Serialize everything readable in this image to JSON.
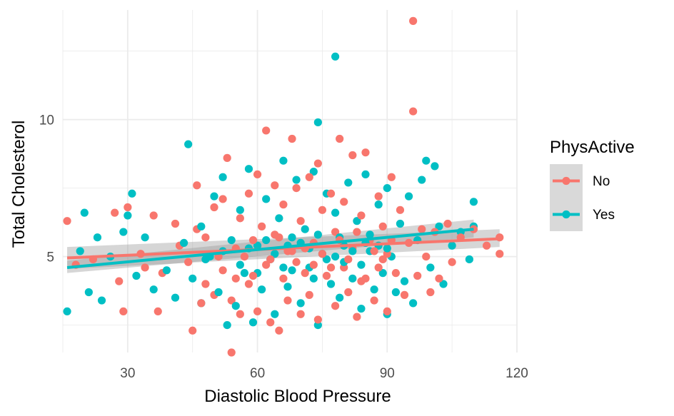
{
  "chart_data": {
    "type": "scatter",
    "xlabel": "Diastolic Blood Pressure",
    "ylabel": "Total Cholesterol",
    "xlim": [
      15,
      120
    ],
    "ylim": [
      1.5,
      14
    ],
    "x_ticks": [
      30,
      60,
      90,
      120
    ],
    "y_ticks": [
      5,
      10
    ],
    "x_tick_labels": [
      "30",
      "60",
      "90",
      "120"
    ],
    "y_tick_labels": [
      "5",
      "10"
    ],
    "grid": true,
    "theme": "minimal",
    "legend": {
      "title": "PhysActive",
      "position": "right",
      "entries": [
        "No",
        "Yes"
      ]
    },
    "series": [
      {
        "name": "No",
        "color": "#f8766d",
        "trend": {
          "x": [
            16,
            116
          ],
          "y": [
            4.95,
            5.65
          ],
          "ci_low": [
            4.55,
            5.35
          ],
          "ci_high": [
            5.35,
            6.0
          ]
        },
        "points": [
          [
            16,
            6.3
          ],
          [
            18,
            4.7
          ],
          [
            22,
            4.9
          ],
          [
            27,
            6.6
          ],
          [
            28,
            4.1
          ],
          [
            29,
            3.0
          ],
          [
            30,
            6.8
          ],
          [
            33,
            5.1
          ],
          [
            34,
            4.6
          ],
          [
            36,
            6.5
          ],
          [
            37,
            3.0
          ],
          [
            38,
            4.4
          ],
          [
            41,
            6.2
          ],
          [
            42,
            5.4
          ],
          [
            44,
            4.8
          ],
          [
            45,
            2.3
          ],
          [
            46,
            6.0
          ],
          [
            46,
            7.6
          ],
          [
            48,
            4.0
          ],
          [
            48,
            5.7
          ],
          [
            50,
            3.6
          ],
          [
            50,
            6.8
          ],
          [
            52,
            4.5
          ],
          [
            52,
            7.1
          ],
          [
            53,
            8.6
          ],
          [
            54,
            1.5
          ],
          [
            54,
            3.4
          ],
          [
            55,
            5.3
          ],
          [
            56,
            6.4
          ],
          [
            56,
            2.9
          ],
          [
            58,
            7.3
          ],
          [
            58,
            4.0
          ],
          [
            59,
            5.6
          ],
          [
            60,
            3.0
          ],
          [
            60,
            8.0
          ],
          [
            61,
            6.1
          ],
          [
            62,
            9.6
          ],
          [
            62,
            4.7
          ],
          [
            63,
            2.6
          ],
          [
            64,
            5.8
          ],
          [
            64,
            7.6
          ],
          [
            65,
            2.3
          ],
          [
            66,
            4.2
          ],
          [
            66,
            6.9
          ],
          [
            67,
            3.4
          ],
          [
            68,
            9.3
          ],
          [
            68,
            5.2
          ],
          [
            69,
            7.5
          ],
          [
            70,
            2.9
          ],
          [
            70,
            6.3
          ],
          [
            71,
            4.4
          ],
          [
            72,
            7.9
          ],
          [
            72,
            3.6
          ],
          [
            73,
            5.5
          ],
          [
            74,
            8.4
          ],
          [
            74,
            2.7
          ],
          [
            75,
            6.7
          ],
          [
            76,
            4.3
          ],
          [
            77,
            7.3
          ],
          [
            78,
            3.2
          ],
          [
            78,
            5.9
          ],
          [
            79,
            9.3
          ],
          [
            80,
            4.6
          ],
          [
            80,
            7.0
          ],
          [
            81,
            3.7
          ],
          [
            82,
            8.7
          ],
          [
            82,
            5.3
          ],
          [
            83,
            2.8
          ],
          [
            84,
            6.5
          ],
          [
            84,
            4.1
          ],
          [
            85,
            8.8
          ],
          [
            86,
            5.6
          ],
          [
            87,
            3.4
          ],
          [
            88,
            7.2
          ],
          [
            88,
            4.6
          ],
          [
            89,
            6.1
          ],
          [
            90,
            3.0
          ],
          [
            90,
            5.1
          ],
          [
            91,
            7.9
          ],
          [
            92,
            4.4
          ],
          [
            93,
            6.7
          ],
          [
            94,
            3.6
          ],
          [
            95,
            5.5
          ],
          [
            96,
            13.6
          ],
          [
            96,
            10.3
          ],
          [
            97,
            4.3
          ],
          [
            98,
            6.0
          ],
          [
            99,
            5.0
          ],
          [
            100,
            3.7
          ],
          [
            101,
            5.9
          ],
          [
            102,
            4.2
          ],
          [
            104,
            6.2
          ],
          [
            105,
            4.8
          ],
          [
            107,
            5.7
          ],
          [
            110,
            6.0
          ],
          [
            113,
            5.4
          ],
          [
            116,
            5.7
          ],
          [
            116,
            5.1
          ],
          [
            57,
            5.0
          ],
          [
            63,
            4.9
          ],
          [
            69,
            4.8
          ],
          [
            75,
            5.1
          ],
          [
            81,
            4.9
          ],
          [
            87,
            5.2
          ],
          [
            59,
            4.3
          ],
          [
            65,
            5.7
          ],
          [
            71,
            5.3
          ],
          [
            77,
            4.6
          ],
          [
            83,
            5.9
          ],
          [
            89,
            4.9
          ],
          [
            47,
            3.3
          ],
          [
            51,
            5.0
          ],
          [
            55,
            4.2
          ],
          [
            67,
            5.2
          ],
          [
            73,
            4.7
          ],
          [
            79,
            5.6
          ],
          [
            85,
            4.2
          ],
          [
            91,
            5.6
          ]
        ]
      },
      {
        "name": "Yes",
        "color": "#00bfc4",
        "trend": {
          "x": [
            16,
            110
          ],
          "y": [
            4.6,
            6.0
          ],
          "ci_low": [
            4.4,
            5.7
          ],
          "ci_high": [
            4.85,
            6.35
          ]
        },
        "points": [
          [
            16,
            3.0
          ],
          [
            19,
            5.2
          ],
          [
            20,
            6.6
          ],
          [
            21,
            3.7
          ],
          [
            23,
            5.7
          ],
          [
            24,
            3.4
          ],
          [
            26,
            5.0
          ],
          [
            29,
            5.9
          ],
          [
            30,
            6.5
          ],
          [
            31,
            7.3
          ],
          [
            32,
            4.3
          ],
          [
            34,
            5.7
          ],
          [
            36,
            3.8
          ],
          [
            39,
            4.5
          ],
          [
            41,
            3.5
          ],
          [
            43,
            5.5
          ],
          [
            44,
            9.1
          ],
          [
            45,
            4.2
          ],
          [
            47,
            6.1
          ],
          [
            47,
            3.3
          ],
          [
            49,
            5.0
          ],
          [
            50,
            7.2
          ],
          [
            51,
            3.7
          ],
          [
            52,
            7.9
          ],
          [
            53,
            2.5
          ],
          [
            54,
            5.6
          ],
          [
            55,
            3.2
          ],
          [
            56,
            6.7
          ],
          [
            57,
            4.4
          ],
          [
            58,
            8.2
          ],
          [
            59,
            2.6
          ],
          [
            60,
            5.4
          ],
          [
            61,
            3.8
          ],
          [
            62,
            7.1
          ],
          [
            63,
            4.9
          ],
          [
            64,
            2.9
          ],
          [
            65,
            6.4
          ],
          [
            66,
            8.5
          ],
          [
            67,
            3.9
          ],
          [
            68,
            5.7
          ],
          [
            69,
            7.8
          ],
          [
            70,
            3.3
          ],
          [
            71,
            6.0
          ],
          [
            72,
            4.6
          ],
          [
            73,
            8.1
          ],
          [
            74,
            9.9
          ],
          [
            74,
            2.5
          ],
          [
            75,
            5.1
          ],
          [
            76,
            7.3
          ],
          [
            77,
            4.0
          ],
          [
            78,
            12.3
          ],
          [
            78,
            6.6
          ],
          [
            79,
            3.5
          ],
          [
            80,
            5.4
          ],
          [
            81,
            7.7
          ],
          [
            82,
            4.2
          ],
          [
            83,
            6.3
          ],
          [
            84,
            3.1
          ],
          [
            85,
            8.0
          ],
          [
            86,
            5.2
          ],
          [
            87,
            3.8
          ],
          [
            88,
            6.9
          ],
          [
            89,
            4.4
          ],
          [
            90,
            2.9
          ],
          [
            90,
            7.5
          ],
          [
            91,
            5.0
          ],
          [
            92,
            3.7
          ],
          [
            93,
            6.2
          ],
          [
            94,
            4.1
          ],
          [
            95,
            7.2
          ],
          [
            96,
            3.3
          ],
          [
            97,
            5.6
          ],
          [
            98,
            7.8
          ],
          [
            99,
            8.5
          ],
          [
            100,
            4.6
          ],
          [
            101,
            8.3
          ],
          [
            102,
            6.1
          ],
          [
            103,
            4.0
          ],
          [
            105,
            5.4
          ],
          [
            107,
            5.9
          ],
          [
            109,
            4.9
          ],
          [
            110,
            7.0
          ],
          [
            110,
            6.1
          ],
          [
            58,
            5.3
          ],
          [
            64,
            5.1
          ],
          [
            70,
            5.5
          ],
          [
            76,
            4.9
          ],
          [
            82,
            5.2
          ],
          [
            88,
            5.4
          ],
          [
            56,
            4.7
          ],
          [
            62,
            5.6
          ],
          [
            68,
            4.5
          ],
          [
            74,
            5.8
          ],
          [
            80,
            4.8
          ],
          [
            86,
            5.8
          ],
          [
            48,
            4.9
          ],
          [
            52,
            5.2
          ],
          [
            66,
            4.6
          ],
          [
            72,
            5.3
          ],
          [
            78,
            5.0
          ],
          [
            84,
            4.7
          ],
          [
            90,
            5.3
          ],
          [
            60,
            4.4
          ],
          [
            67,
            5.4
          ],
          [
            73,
            4.2
          ],
          [
            79,
            5.7
          ],
          [
            85,
            5.5
          ]
        ]
      }
    ]
  }
}
